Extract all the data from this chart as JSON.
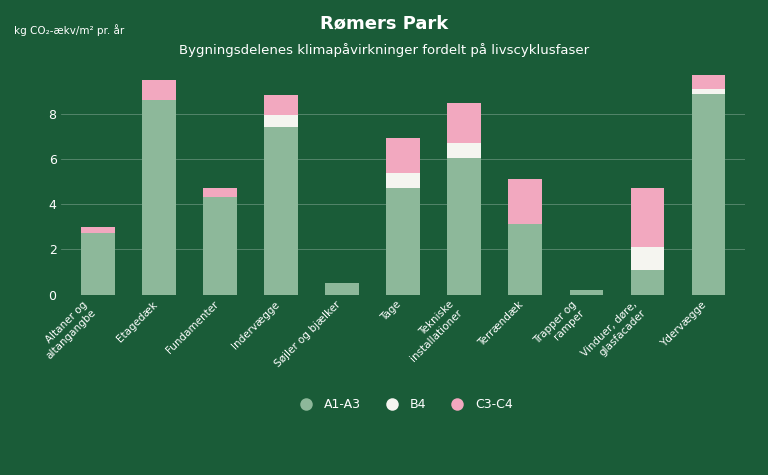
{
  "title": "Rømers Park",
  "subtitle": "Bygningsdelenes klimapåvirkninger fordelt på livscyklusfaser",
  "ylabel_short": "kg CO₂-ækv/m² pr. år",
  "background_color": "#1a5c38",
  "bar_color_a1a3": "#8db89a",
  "bar_color_b4": "#f5f5f0",
  "bar_color_c3c4": "#f2a8bf",
  "categories": [
    "Altaner og\naltangangbe",
    "Etagedæk",
    "Fundamenter",
    "Indervægge",
    "Søjler og bjælker",
    "Tage",
    "Tekniske\ninstallationer",
    "Terrændæk",
    "Trapper og\nramper",
    "Vinduer, døre,\nglasfacader",
    "Ydervæ gge"
  ],
  "A1A3": [
    2.7,
    8.6,
    4.3,
    7.4,
    0.5,
    4.7,
    6.05,
    3.1,
    0.2,
    1.1,
    8.85
  ],
  "B4": [
    0.0,
    0.0,
    0.0,
    0.55,
    0.0,
    0.65,
    0.65,
    0.0,
    0.0,
    1.0,
    0.25
  ],
  "C3C4": [
    0.3,
    0.9,
    0.4,
    0.85,
    0.0,
    1.55,
    1.75,
    2.0,
    0.0,
    2.6,
    0.6
  ],
  "ylim": [
    0,
    10.5
  ],
  "yticks": [
    0,
    2,
    4,
    6,
    8
  ],
  "legend_labels": [
    "A1-A3",
    "B4",
    "C3-C4"
  ],
  "text_color": "#ffffff",
  "grid_color": "#ffffff"
}
